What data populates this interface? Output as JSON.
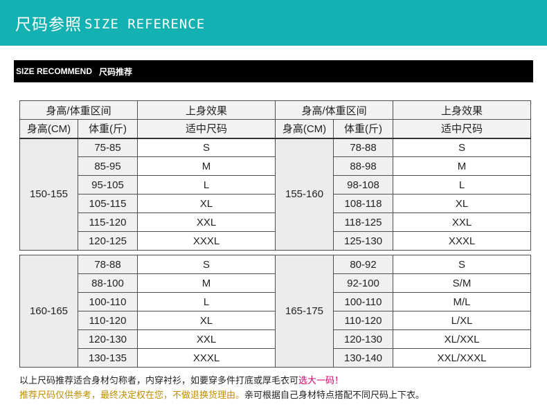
{
  "banner": {
    "title_cn": "尺码参照",
    "title_en": "SIZE REFERENCE"
  },
  "section": {
    "title_en": "SIZE RECOMMEND",
    "title_cn": "尺码推荐"
  },
  "headers": {
    "range": "身高/体重区间",
    "effect": "上身效果",
    "height": "身高(CM)",
    "weight": "体重(斤)",
    "fit": "适中尺码"
  },
  "groups": [
    {
      "height": "150-155",
      "rows": [
        {
          "weight": "75-85",
          "size": "S"
        },
        {
          "weight": "85-95",
          "size": "M"
        },
        {
          "weight": "95-105",
          "size": "L"
        },
        {
          "weight": "105-115",
          "size": "XL"
        },
        {
          "weight": "115-120",
          "size": "XXL"
        },
        {
          "weight": "120-125",
          "size": "XXXL"
        }
      ]
    },
    {
      "height": "155-160",
      "rows": [
        {
          "weight": "78-88",
          "size": "S"
        },
        {
          "weight": "88-98",
          "size": "M"
        },
        {
          "weight": "98-108",
          "size": "L"
        },
        {
          "weight": "108-118",
          "size": "XL"
        },
        {
          "weight": "118-125",
          "size": "XXL"
        },
        {
          "weight": "125-130",
          "size": "XXXL"
        }
      ]
    },
    {
      "height": "160-165",
      "rows": [
        {
          "weight": "78-88",
          "size": "S"
        },
        {
          "weight": "88-100",
          "size": "M"
        },
        {
          "weight": "100-110",
          "size": "L"
        },
        {
          "weight": "110-120",
          "size": "XL"
        },
        {
          "weight": "120-130",
          "size": "XXL"
        },
        {
          "weight": "130-135",
          "size": "XXXL"
        }
      ]
    },
    {
      "height": "165-175",
      "rows": [
        {
          "weight": "80-92",
          "size": "S"
        },
        {
          "weight": "92-100",
          "size": "S/M"
        },
        {
          "weight": "100-110",
          "size": "M/L"
        },
        {
          "weight": "110-120",
          "size": "L/XL"
        },
        {
          "weight": "120-130",
          "size": "XL/XXL"
        },
        {
          "weight": "130-140",
          "size": "XXL/XXXL"
        }
      ]
    }
  ],
  "notes": {
    "line1_main": "以上尺码推荐适合身材匀称者，内穿衬衫，如要穿多件打底或厚毛衣可",
    "line1_highlight": "选大一码！",
    "line2_gold": "推荐尺码仅供参考，最终决定权在您，不做退换货理由。",
    "line2_plain": "亲可根据自己身材特点搭配不同尺码上下衣。"
  },
  "colors": {
    "banner": "#14b1b3",
    "bar": "#000000",
    "highlight": "#d6006a",
    "gold": "#c08e00"
  }
}
